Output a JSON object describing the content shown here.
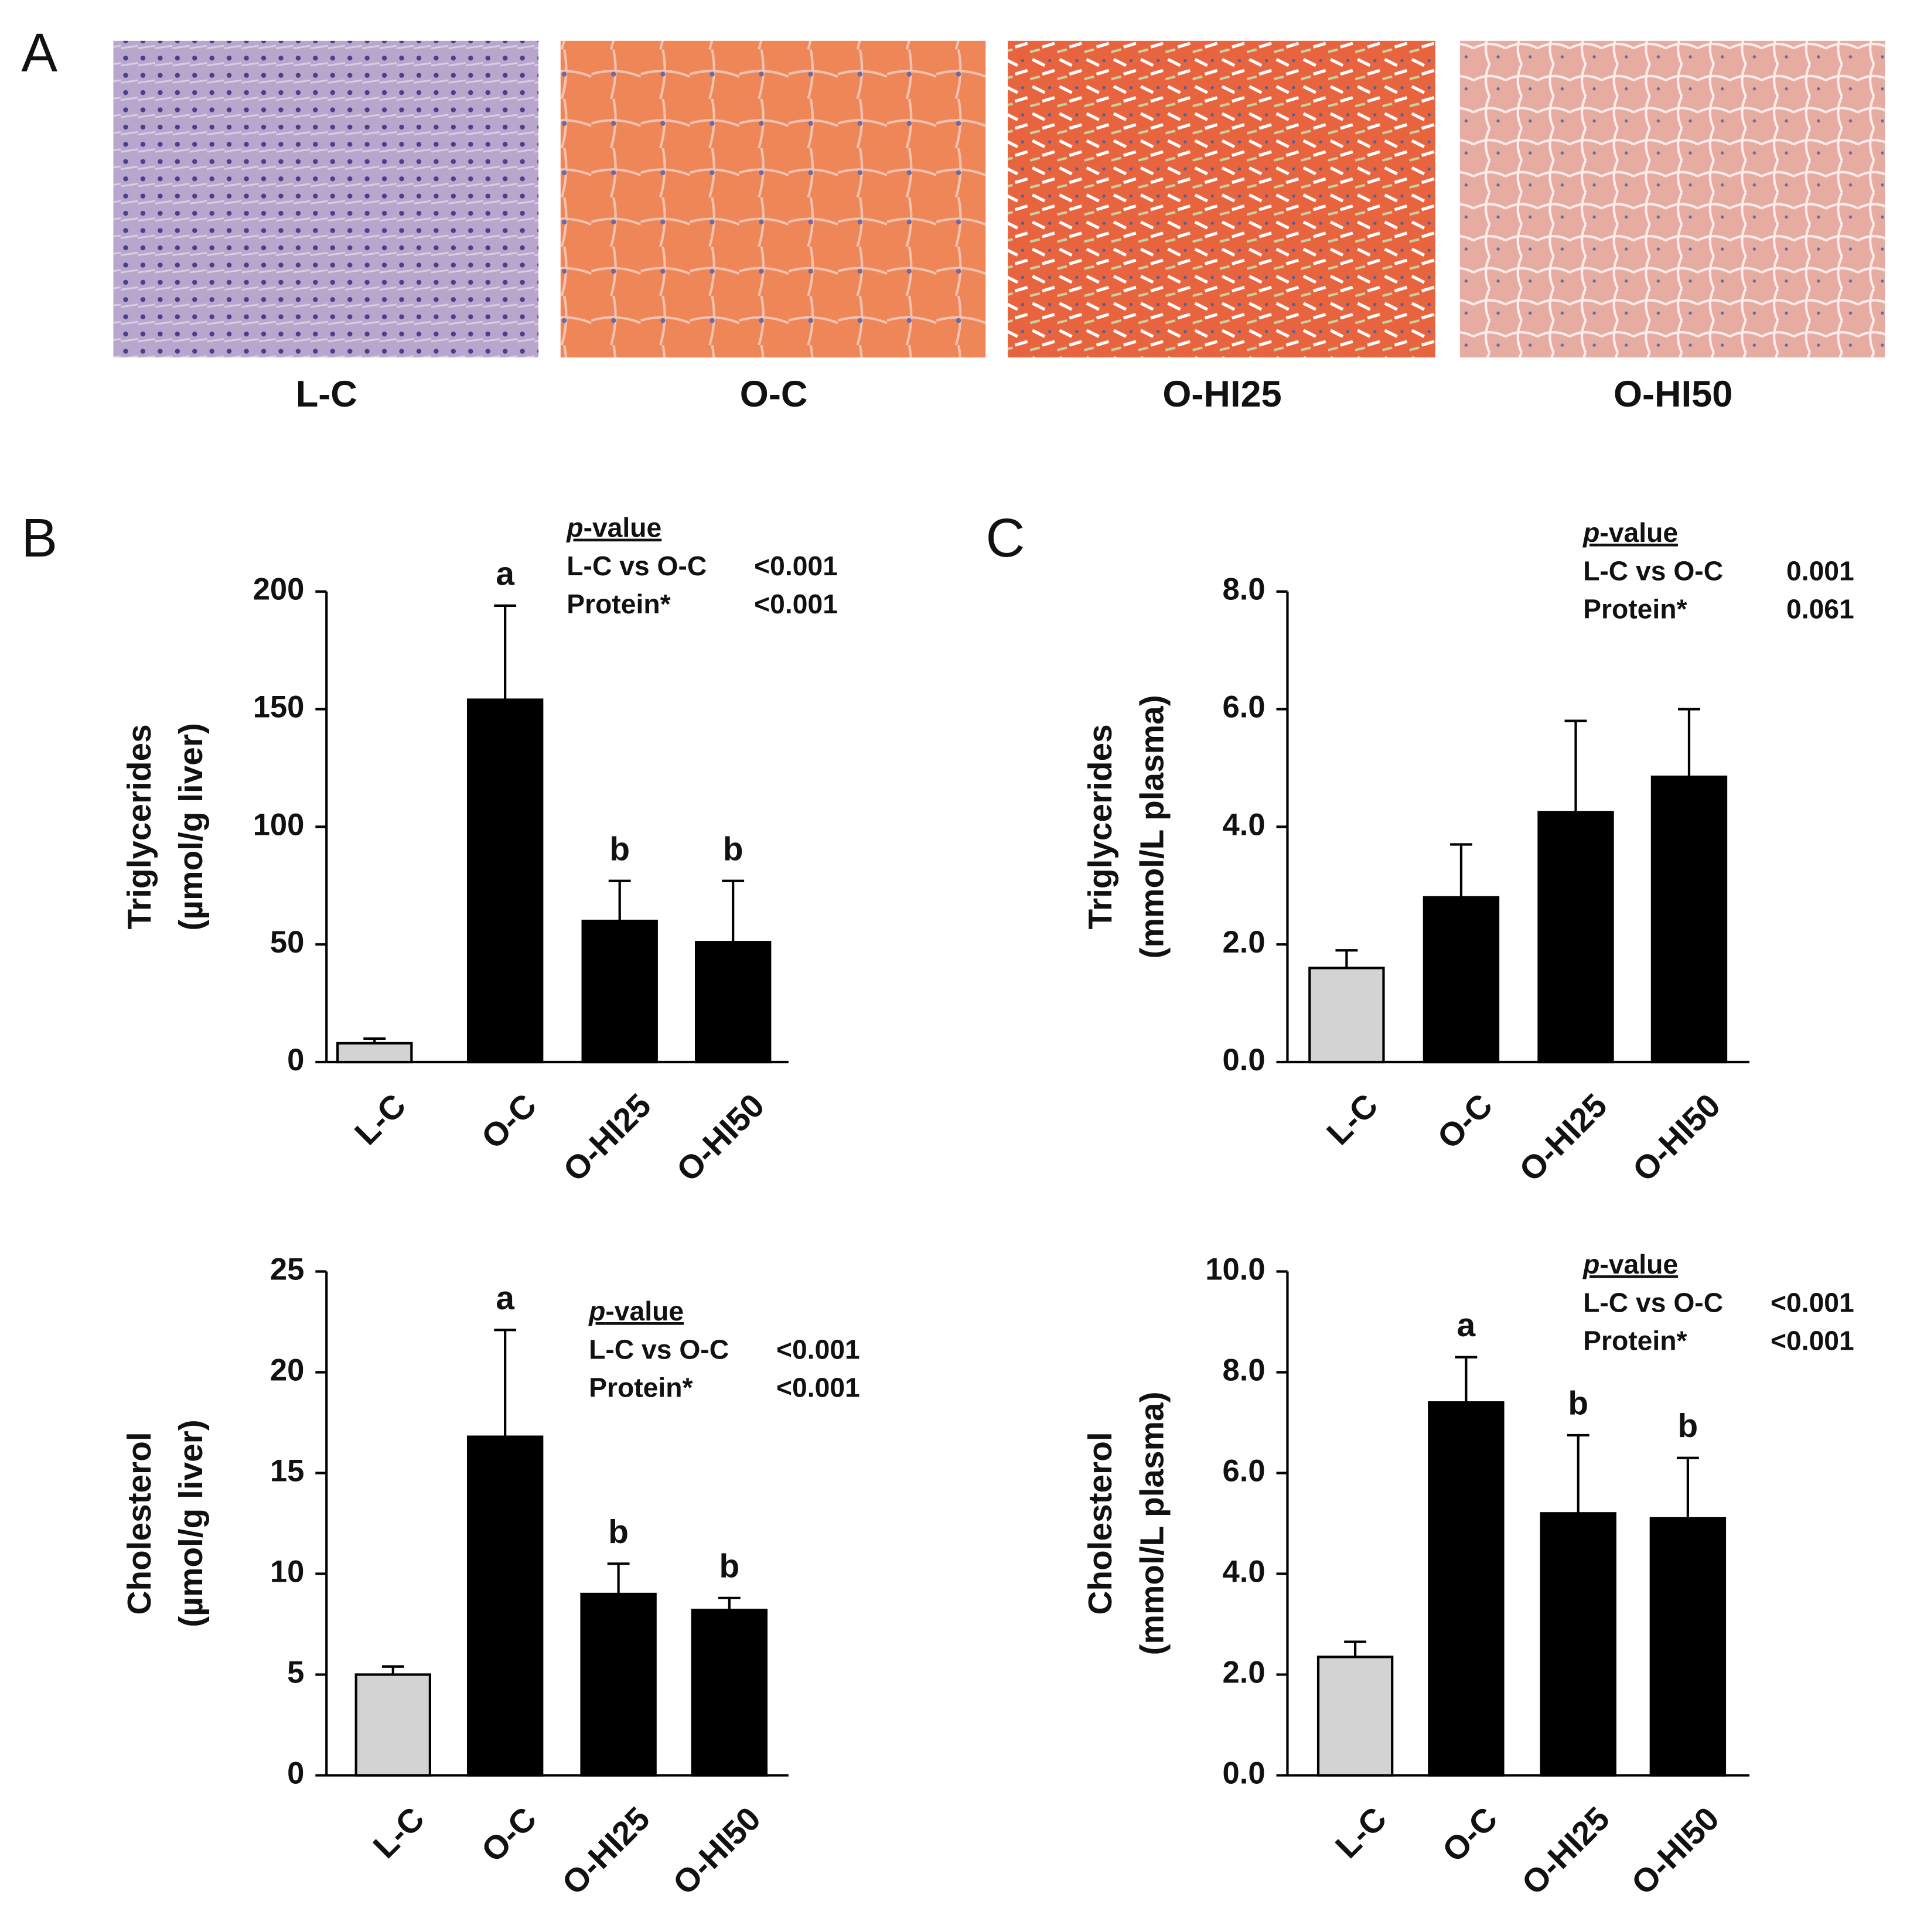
{
  "panel_labels": [
    "A",
    "B",
    "C"
  ],
  "images": [
    {
      "label": "L-C"
    },
    {
      "label": "O-C"
    },
    {
      "label": "O-HI25"
    },
    {
      "label": "O-HI50"
    }
  ],
  "chart_data": [
    {
      "type": "bar",
      "ylabel": [
        "Triglycerides",
        "(µmol/g liver)"
      ],
      "categories": [
        "L-C",
        "O-C",
        "O-HI25",
        "O-HI50"
      ],
      "values": [
        8,
        154,
        60,
        51
      ],
      "errors": [
        2,
        40,
        17,
        26
      ],
      "colors": [
        "#d3d3d3",
        "#000000",
        "#000000",
        "#000000"
      ],
      "annotations": [
        null,
        "a",
        "b",
        "b"
      ],
      "ylim": [
        0,
        200
      ],
      "yticks": [
        0,
        50,
        100,
        150,
        200
      ],
      "stats": {
        "title": "p-value",
        "rows": [
          [
            "L-C vs O-C",
            "<0.001"
          ],
          [
            "Protein*",
            "<0.001"
          ]
        ]
      }
    },
    {
      "type": "bar",
      "ylabel": [
        "Triglycerides",
        "(mmol/L plasma)"
      ],
      "categories": [
        "L-C",
        "O-C",
        "O-HI25",
        "O-HI50"
      ],
      "values": [
        1.6,
        2.8,
        4.25,
        4.85
      ],
      "errors": [
        0.3,
        0.9,
        1.55,
        1.15
      ],
      "colors": [
        "#d3d3d3",
        "#000000",
        "#000000",
        "#000000"
      ],
      "ylim": [
        0,
        8
      ],
      "yticks": [
        {
          "value": 0,
          "label": "0.0"
        },
        {
          "value": 2,
          "label": "2.0"
        },
        {
          "value": 4,
          "label": "4.0"
        },
        {
          "value": 6,
          "label": "6.0"
        },
        {
          "value": 8,
          "label": "8.0"
        }
      ],
      "stats": {
        "title": "p-value",
        "rows": [
          [
            "L-C vs O-C",
            "0.001"
          ],
          [
            "Protein*",
            "0.061"
          ]
        ]
      }
    },
    {
      "type": "bar",
      "ylabel": [
        "Cholesterol",
        "(µmol/g liver)"
      ],
      "categories": [
        "L-C",
        "O-C",
        "O-HI25",
        "O-HI50"
      ],
      "values": [
        5.0,
        16.8,
        9.0,
        8.2
      ],
      "errors": [
        0.4,
        5.3,
        1.5,
        0.6
      ],
      "colors": [
        "#d3d3d3",
        "#000000",
        "#000000",
        "#000000"
      ],
      "annotations": [
        null,
        "a",
        "b",
        "b"
      ],
      "ylim": [
        0,
        25
      ],
      "yticks": [
        0,
        5,
        10,
        15,
        20,
        25
      ],
      "stats": {
        "title": "p-value",
        "rows": [
          [
            "L-C vs O-C",
            "<0.001"
          ],
          [
            "Protein*",
            "<0.001"
          ]
        ]
      }
    },
    {
      "type": "bar",
      "ylabel": [
        "Cholesterol",
        "(mmol/L plasma)"
      ],
      "categories": [
        "L-C",
        "O-C",
        "O-HI25",
        "O-HI50"
      ],
      "values": [
        2.35,
        7.4,
        5.2,
        5.1
      ],
      "errors": [
        0.3,
        0.9,
        1.55,
        1.2
      ],
      "colors": [
        "#d3d3d3",
        "#000000",
        "#000000",
        "#000000"
      ],
      "annotations": [
        null,
        "a",
        "b",
        "b"
      ],
      "ylim": [
        0,
        10
      ],
      "yticks": [
        {
          "value": 0,
          "label": "0.0"
        },
        {
          "value": 2,
          "label": "2.0"
        },
        {
          "value": 4,
          "label": "4.0"
        },
        {
          "value": 6,
          "label": "6.0"
        },
        {
          "value": 8,
          "label": "8.0"
        },
        {
          "value": 10,
          "label": "10.0"
        }
      ],
      "stats": {
        "title": "p-value",
        "rows": [
          [
            "L-C vs O-C",
            "<0.001"
          ],
          [
            "Protein*",
            "<0.001"
          ]
        ]
      }
    }
  ]
}
